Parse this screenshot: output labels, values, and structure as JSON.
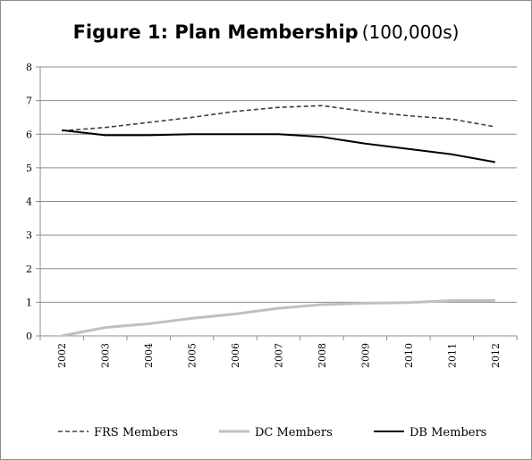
{
  "chart_data": {
    "type": "line",
    "title": "Figure 1: Plan Membership",
    "subtitle": "(100,000s)",
    "categories": [
      "2002",
      "2003",
      "2004",
      "2005",
      "2006",
      "2007",
      "2008",
      "2009",
      "2010",
      "2011",
      "2012"
    ],
    "ylim": [
      0,
      8
    ],
    "yticks": [
      "0",
      "1",
      "2",
      "3",
      "4",
      "5",
      "6",
      "7",
      "8"
    ],
    "grid": true,
    "legend_position": "bottom",
    "series": [
      {
        "name": "FRS Members",
        "values": [
          6.1,
          6.2,
          6.35,
          6.5,
          6.68,
          6.8,
          6.85,
          6.68,
          6.55,
          6.45,
          6.22
        ],
        "color": "#404040",
        "style": "dashed"
      },
      {
        "name": "DC Members",
        "values": [
          0.0,
          0.25,
          0.36,
          0.52,
          0.65,
          0.82,
          0.93,
          0.97,
          0.99,
          1.05,
          1.05
        ],
        "color": "#c0c0c0",
        "style": "solid"
      },
      {
        "name": "DB Members",
        "values": [
          6.12,
          5.97,
          5.97,
          6.0,
          6.0,
          6.0,
          5.92,
          5.72,
          5.56,
          5.4,
          5.17
        ],
        "color": "#000000",
        "style": "solid"
      }
    ]
  }
}
